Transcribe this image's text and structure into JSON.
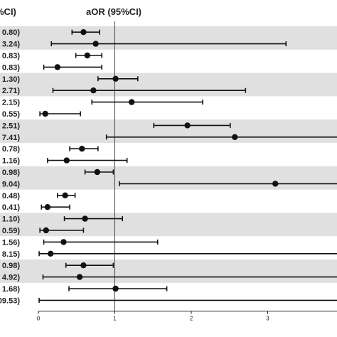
{
  "chart_data": {
    "type": "forest",
    "title": "aOR (95%CI)",
    "left_header": "%CI)",
    "xlim": [
      0,
      3.4
    ],
    "xticks": [
      "0",
      "1",
      "2",
      "3"
    ],
    "reference_line": 1,
    "band_color": "#e0e0e0",
    "marker_color": "#111111",
    "rows": [
      {
        "label": "0.80)",
        "aor": 0.59,
        "lo": 0.44,
        "hi": 0.8
      },
      {
        "label": "3.24)",
        "aor": 0.75,
        "lo": 0.17,
        "hi": 3.24
      },
      {
        "label": "0.83)",
        "aor": 0.64,
        "lo": 0.49,
        "hi": 0.83
      },
      {
        "label": "0.83)",
        "aor": 0.25,
        "lo": 0.07,
        "hi": 0.83
      },
      {
        "label": "1.30)",
        "aor": 1.01,
        "lo": 0.78,
        "hi": 1.3
      },
      {
        "label": "2.71)",
        "aor": 0.72,
        "lo": 0.19,
        "hi": 2.71
      },
      {
        "label": "2.15)",
        "aor": 1.22,
        "lo": 0.7,
        "hi": 2.15
      },
      {
        "label": "0.55)",
        "aor": 0.09,
        "lo": 0.02,
        "hi": 0.55
      },
      {
        "label": "2.51)",
        "aor": 1.95,
        "lo": 1.51,
        "hi": 2.51
      },
      {
        "label": "7.41)",
        "aor": 2.57,
        "lo": 0.89,
        "hi": 7.41
      },
      {
        "label": "0.78)",
        "aor": 0.57,
        "lo": 0.41,
        "hi": 0.78
      },
      {
        "label": "1.16)",
        "aor": 0.37,
        "lo": 0.12,
        "hi": 1.16
      },
      {
        "label": "0.98)",
        "aor": 0.77,
        "lo": 0.61,
        "hi": 0.98
      },
      {
        "label": "9.04)",
        "aor": 3.1,
        "lo": 1.06,
        "hi": 9.04
      },
      {
        "label": "0.48)",
        "aor": 0.35,
        "lo": 0.25,
        "hi": 0.48
      },
      {
        "label": "0.41)",
        "aor": 0.12,
        "lo": 0.04,
        "hi": 0.41
      },
      {
        "label": "1.10)",
        "aor": 0.61,
        "lo": 0.34,
        "hi": 1.1
      },
      {
        "label": "0.59)",
        "aor": 0.1,
        "lo": 0.02,
        "hi": 0.59
      },
      {
        "label": "1.56)",
        "aor": 0.33,
        "lo": 0.07,
        "hi": 1.56
      },
      {
        "label": "8.15)",
        "aor": 0.16,
        "lo": 0.01,
        "hi": 8.15
      },
      {
        "label": "0.98)",
        "aor": 0.59,
        "lo": 0.36,
        "hi": 0.98
      },
      {
        "label": "4.92)",
        "aor": 0.54,
        "lo": 0.06,
        "hi": 4.92
      },
      {
        "label": "1.68)",
        "aor": 1.01,
        "lo": 0.4,
        "hi": 1.68
      },
      {
        "label": "109.53)",
        "aor": null,
        "lo": 0.01,
        "hi": 109.53
      }
    ],
    "shaded_rows": [
      0,
      1,
      4,
      5,
      8,
      9,
      12,
      13,
      16,
      17,
      20,
      21
    ]
  }
}
